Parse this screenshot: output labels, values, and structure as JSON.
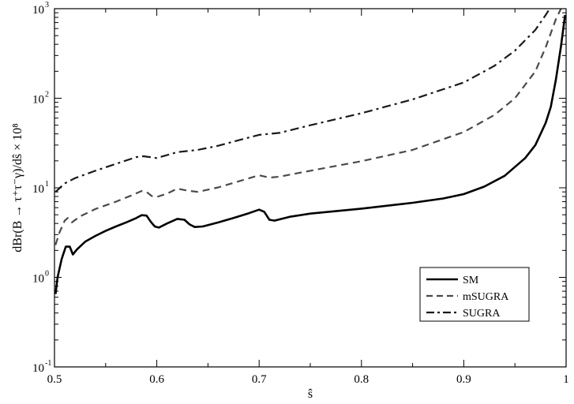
{
  "chart_data": {
    "type": "line",
    "title": "",
    "xlabel": "ŝ",
    "ylabel": "dBr(B → τ⁺τ⁻γ)/dŝ × 10⁸",
    "xlim": [
      0.5,
      1.0
    ],
    "ylim": [
      0.1,
      1000
    ],
    "yscale": "log",
    "grid": false,
    "legend_position": "lower-right",
    "x_ticks": [
      {
        "value": 0.5,
        "label": "0.5"
      },
      {
        "value": 0.6,
        "label": "0.6"
      },
      {
        "value": 0.7,
        "label": "0.7"
      },
      {
        "value": 0.8,
        "label": "0.8"
      },
      {
        "value": 0.9,
        "label": "0.9"
      },
      {
        "value": 1.0,
        "label": "1"
      }
    ],
    "y_ticks": [
      {
        "value": 0.1,
        "base": "10",
        "exp": "-1"
      },
      {
        "value": 1,
        "base": "10",
        "exp": "0"
      },
      {
        "value": 10,
        "base": "10",
        "exp": "1"
      },
      {
        "value": 100,
        "base": "10",
        "exp": "2"
      },
      {
        "value": 1000,
        "base": "10",
        "exp": "3"
      }
    ],
    "series": [
      {
        "name": "SM",
        "style": "solid",
        "color": "#000000",
        "points": [
          [
            0.501,
            0.65
          ],
          [
            0.503,
            1.0
          ],
          [
            0.507,
            1.6
          ],
          [
            0.511,
            2.2
          ],
          [
            0.515,
            2.2
          ],
          [
            0.518,
            1.8
          ],
          [
            0.522,
            2.05
          ],
          [
            0.53,
            2.5
          ],
          [
            0.54,
            2.9
          ],
          [
            0.55,
            3.3
          ],
          [
            0.56,
            3.7
          ],
          [
            0.57,
            4.1
          ],
          [
            0.58,
            4.6
          ],
          [
            0.585,
            4.95
          ],
          [
            0.59,
            4.9
          ],
          [
            0.594,
            4.2
          ],
          [
            0.598,
            3.7
          ],
          [
            0.602,
            3.6
          ],
          [
            0.61,
            4.0
          ],
          [
            0.62,
            4.5
          ],
          [
            0.627,
            4.4
          ],
          [
            0.632,
            3.9
          ],
          [
            0.637,
            3.65
          ],
          [
            0.645,
            3.7
          ],
          [
            0.66,
            4.1
          ],
          [
            0.675,
            4.6
          ],
          [
            0.69,
            5.2
          ],
          [
            0.7,
            5.7
          ],
          [
            0.705,
            5.4
          ],
          [
            0.71,
            4.4
          ],
          [
            0.715,
            4.3
          ],
          [
            0.73,
            4.75
          ],
          [
            0.75,
            5.15
          ],
          [
            0.8,
            5.85
          ],
          [
            0.85,
            6.8
          ],
          [
            0.88,
            7.6
          ],
          [
            0.9,
            8.5
          ],
          [
            0.92,
            10.3
          ],
          [
            0.94,
            13.6
          ],
          [
            0.96,
            21.5
          ],
          [
            0.97,
            30.0
          ],
          [
            0.98,
            53.0
          ],
          [
            0.985,
            80.0
          ],
          [
            0.99,
            160.0
          ],
          [
            0.995,
            380.0
          ],
          [
            0.999,
            850.0
          ]
        ]
      },
      {
        "name": "mSUGRA",
        "style": "dashed",
        "color": "#4a4a4a",
        "points": [
          [
            0.501,
            2.3
          ],
          [
            0.505,
            3.2
          ],
          [
            0.51,
            4.3
          ],
          [
            0.513,
            4.6
          ],
          [
            0.517,
            4.1
          ],
          [
            0.525,
            4.8
          ],
          [
            0.54,
            5.8
          ],
          [
            0.56,
            7.0
          ],
          [
            0.575,
            8.2
          ],
          [
            0.585,
            9.2
          ],
          [
            0.59,
            9.0
          ],
          [
            0.595,
            8.1
          ],
          [
            0.6,
            7.9
          ],
          [
            0.61,
            8.6
          ],
          [
            0.62,
            9.8
          ],
          [
            0.63,
            9.3
          ],
          [
            0.64,
            9.0
          ],
          [
            0.66,
            10.1
          ],
          [
            0.68,
            11.8
          ],
          [
            0.7,
            13.8
          ],
          [
            0.71,
            13.0
          ],
          [
            0.72,
            13.3
          ],
          [
            0.75,
            15.5
          ],
          [
            0.8,
            19.8
          ],
          [
            0.85,
            26.5
          ],
          [
            0.9,
            42.0
          ],
          [
            0.93,
            65.0
          ],
          [
            0.95,
            100.0
          ],
          [
            0.97,
            200.0
          ],
          [
            0.98,
            370.0
          ],
          [
            0.99,
            760.0
          ],
          [
            0.995,
            1000.0
          ]
        ]
      },
      {
        "name": "SUGRA",
        "style": "dashdot",
        "color": "#1a1a1a",
        "points": [
          [
            0.501,
            9.0
          ],
          [
            0.51,
            11.2
          ],
          [
            0.52,
            12.8
          ],
          [
            0.54,
            15.5
          ],
          [
            0.56,
            18.5
          ],
          [
            0.58,
            22.0
          ],
          [
            0.587,
            22.5
          ],
          [
            0.6,
            21.5
          ],
          [
            0.62,
            25.0
          ],
          [
            0.64,
            26.5
          ],
          [
            0.66,
            29.5
          ],
          [
            0.68,
            34.0
          ],
          [
            0.7,
            39.0
          ],
          [
            0.72,
            41.0
          ],
          [
            0.75,
            50.0
          ],
          [
            0.8,
            68.0
          ],
          [
            0.85,
            97.0
          ],
          [
            0.9,
            150.0
          ],
          [
            0.93,
            230.0
          ],
          [
            0.95,
            340.0
          ],
          [
            0.97,
            580.0
          ],
          [
            0.98,
            850.0
          ],
          [
            0.984,
            1000.0
          ]
        ]
      }
    ]
  }
}
